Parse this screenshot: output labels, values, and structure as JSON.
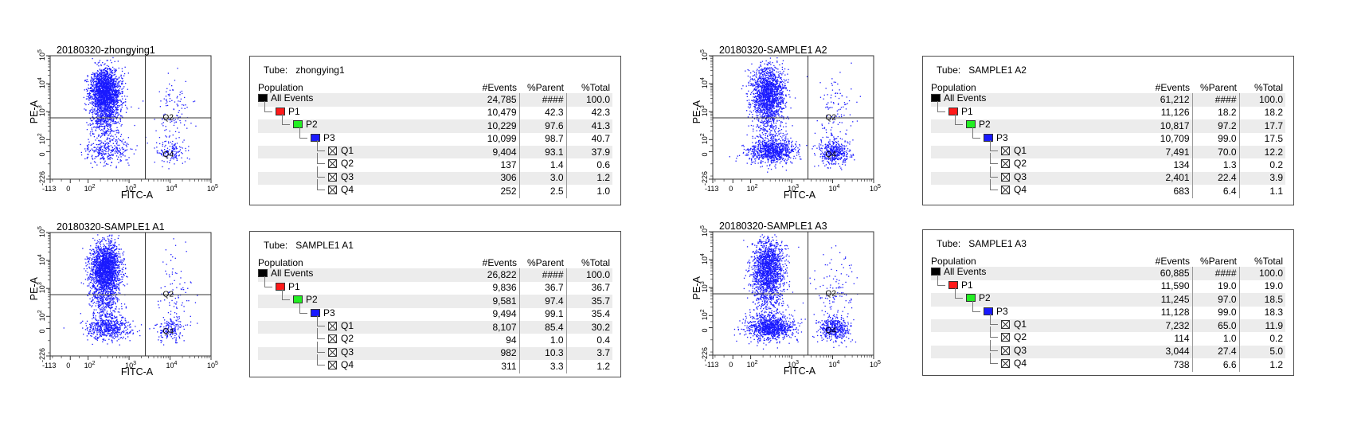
{
  "axis_ticks": {
    "x": [
      "-113",
      "0",
      "10",
      "10",
      "10",
      "10"
    ],
    "x_exp": [
      "",
      "",
      "2",
      "3",
      "4",
      "5"
    ],
    "y": [
      "-226",
      "0",
      "10",
      "10",
      "10",
      "10"
    ],
    "y_exp": [
      "",
      "",
      "2",
      "3",
      "4",
      "5"
    ]
  },
  "quad_labels": [
    "Q2",
    "Q4"
  ],
  "table_headers": [
    "Population",
    "#Events",
    "%Parent",
    "%Total"
  ],
  "tube_prefix": "Tube:",
  "colors": {
    "dots": "#1a1aff",
    "P1": "#ff1a1a",
    "P2": "#22ee22",
    "P3": "#1a1aff",
    "AllEvents": "#000000"
  },
  "chart_data": [
    {
      "type": "scatter",
      "title": "20180320-zhongying1",
      "xlabel": "FITC-A",
      "ylabel": "PE-A",
      "xscale": "biexponential",
      "yscale": "biexponential",
      "gate": {
        "x": 2500,
        "y": 600
      },
      "tube": "zhongying1",
      "population": [
        {
          "name": "All Events",
          "level": 0,
          "events": "24,785",
          "parent": "####",
          "total": "100.0"
        },
        {
          "name": "P1",
          "level": 1,
          "events": "10,479",
          "parent": "42.3",
          "total": "42.3"
        },
        {
          "name": "P2",
          "level": 2,
          "events": "10,229",
          "parent": "97.6",
          "total": "41.3"
        },
        {
          "name": "P3",
          "level": 3,
          "events": "10,099",
          "parent": "98.7",
          "total": "40.7"
        },
        {
          "name": "Q1",
          "level": 4,
          "events": "9,404",
          "parent": "93.1",
          "total": "37.9"
        },
        {
          "name": "Q2",
          "level": 4,
          "events": "137",
          "parent": "1.4",
          "total": "0.6"
        },
        {
          "name": "Q3",
          "level": 4,
          "events": "306",
          "parent": "3.0",
          "total": "1.2"
        },
        {
          "name": "Q4",
          "level": 4,
          "events": "252",
          "parent": "2.5",
          "total": "1.0"
        }
      ]
    },
    {
      "type": "scatter",
      "title": "20180320-SAMPLE1 A1",
      "xlabel": "FITC-A",
      "ylabel": "PE-A",
      "xscale": "biexponential",
      "yscale": "biexponential",
      "gate": {
        "x": 2500,
        "y": 600
      },
      "tube": "SAMPLE1 A1",
      "population": [
        {
          "name": "All Events",
          "level": 0,
          "events": "26,822",
          "parent": "####",
          "total": "100.0"
        },
        {
          "name": "P1",
          "level": 1,
          "events": "9,836",
          "parent": "36.7",
          "total": "36.7"
        },
        {
          "name": "P2",
          "level": 2,
          "events": "9,581",
          "parent": "97.4",
          "total": "35.7"
        },
        {
          "name": "P3",
          "level": 3,
          "events": "9,494",
          "parent": "99.1",
          "total": "35.4"
        },
        {
          "name": "Q1",
          "level": 4,
          "events": "8,107",
          "parent": "85.4",
          "total": "30.2"
        },
        {
          "name": "Q2",
          "level": 4,
          "events": "94",
          "parent": "1.0",
          "total": "0.4"
        },
        {
          "name": "Q3",
          "level": 4,
          "events": "982",
          "parent": "10.3",
          "total": "3.7"
        },
        {
          "name": "Q4",
          "level": 4,
          "events": "311",
          "parent": "3.3",
          "total": "1.2"
        }
      ]
    },
    {
      "type": "scatter",
      "title": "20180320-SAMPLE1 A2",
      "xlabel": "FITC-A",
      "ylabel": "PE-A",
      "xscale": "biexponential",
      "yscale": "biexponential",
      "gate": {
        "x": 2500,
        "y": 600
      },
      "tube": "SAMPLE1 A2",
      "population": [
        {
          "name": "All Events",
          "level": 0,
          "events": "61,212",
          "parent": "####",
          "total": "100.0"
        },
        {
          "name": "P1",
          "level": 1,
          "events": "11,126",
          "parent": "18.2",
          "total": "18.2"
        },
        {
          "name": "P2",
          "level": 2,
          "events": "10,817",
          "parent": "97.2",
          "total": "17.7"
        },
        {
          "name": "P3",
          "level": 3,
          "events": "10,709",
          "parent": "99.0",
          "total": "17.5"
        },
        {
          "name": "Q1",
          "level": 4,
          "events": "7,491",
          "parent": "70.0",
          "total": "12.2"
        },
        {
          "name": "Q2",
          "level": 4,
          "events": "134",
          "parent": "1.3",
          "total": "0.2"
        },
        {
          "name": "Q3",
          "level": 4,
          "events": "2,401",
          "parent": "22.4",
          "total": "3.9"
        },
        {
          "name": "Q4",
          "level": 4,
          "events": "683",
          "parent": "6.4",
          "total": "1.1"
        }
      ]
    },
    {
      "type": "scatter",
      "title": "20180320-SAMPLE1 A3",
      "xlabel": "FITC-A",
      "ylabel": "PE-A",
      "xscale": "biexponential",
      "yscale": "biexponential",
      "gate": {
        "x": 2500,
        "y": 600
      },
      "tube": "SAMPLE1 A3",
      "population": [
        {
          "name": "All Events",
          "level": 0,
          "events": "60,885",
          "parent": "####",
          "total": "100.0"
        },
        {
          "name": "P1",
          "level": 1,
          "events": "11,590",
          "parent": "19.0",
          "total": "19.0"
        },
        {
          "name": "P2",
          "level": 2,
          "events": "11,245",
          "parent": "97.0",
          "total": "18.5"
        },
        {
          "name": "P3",
          "level": 3,
          "events": "11,128",
          "parent": "99.0",
          "total": "18.3"
        },
        {
          "name": "Q1",
          "level": 4,
          "events": "7,232",
          "parent": "65.0",
          "total": "11.9"
        },
        {
          "name": "Q2",
          "level": 4,
          "events": "114",
          "parent": "1.0",
          "total": "0.2"
        },
        {
          "name": "Q3",
          "level": 4,
          "events": "3,044",
          "parent": "27.4",
          "total": "5.0"
        },
        {
          "name": "Q4",
          "level": 4,
          "events": "738",
          "parent": "6.6",
          "total": "1.2"
        }
      ]
    }
  ]
}
